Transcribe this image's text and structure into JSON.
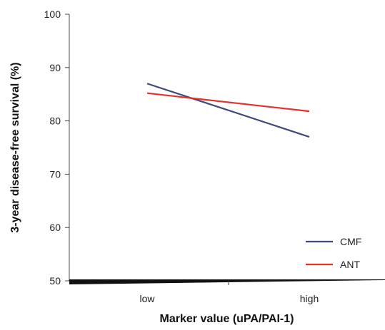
{
  "chart_data": {
    "type": "line",
    "categories": [
      "low",
      "high"
    ],
    "series": [
      {
        "name": "CMF",
        "values": [
          87,
          77
        ],
        "color": "#3d4a7a"
      },
      {
        "name": "ANT",
        "values": [
          85.2,
          81.8
        ],
        "color": "#e0312a"
      }
    ],
    "xlabel": "Marker value (uPA/PAI-1)",
    "ylabel": "3-year disease-free survival (%)",
    "ylim": [
      50,
      100
    ],
    "yticks": [
      50,
      60,
      70,
      80,
      90,
      100
    ],
    "grid": false,
    "legend_position": "bottom-right"
  }
}
